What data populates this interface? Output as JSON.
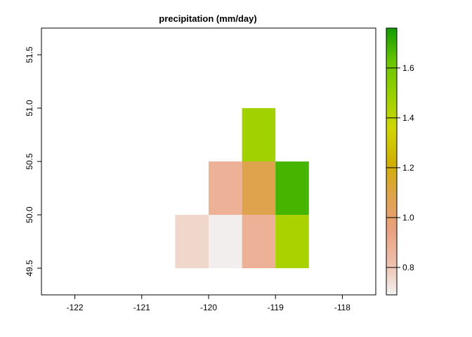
{
  "chart_data": {
    "type": "heatmap",
    "title": "precipitation (mm/day)",
    "xlabel": "",
    "ylabel": "",
    "xlim": [
      -122.5,
      -117.5
    ],
    "ylim": [
      49.25,
      51.75
    ],
    "x_ticks": [
      "-122",
      "-121",
      "-120",
      "-119",
      "-118"
    ],
    "y_ticks": [
      "49.5",
      "50.0",
      "50.5",
      "51.0",
      "51.5"
    ],
    "cell_width": 0.5,
    "cell_height": 0.5,
    "cells": [
      {
        "x": -120.25,
        "y": 49.75,
        "value": 0.76
      },
      {
        "x": -119.75,
        "y": 49.75,
        "value": 0.7
      },
      {
        "x": -119.25,
        "y": 49.75,
        "value": 0.88
      },
      {
        "x": -118.75,
        "y": 49.75,
        "value": 1.45
      },
      {
        "x": -119.75,
        "y": 50.25,
        "value": 0.88
      },
      {
        "x": -119.25,
        "y": 50.25,
        "value": 1.08
      },
      {
        "x": -118.75,
        "y": 50.25,
        "value": 1.68
      },
      {
        "x": -119.25,
        "y": 50.75,
        "value": 1.47
      }
    ],
    "colorbar": {
      "range": [
        0.69,
        1.76
      ],
      "ticks": [
        "0.8",
        "1.0",
        "1.2",
        "1.4",
        "1.6"
      ],
      "colors": [
        "#F2F2F2",
        "#EEBEAA",
        "#E9A07C",
        "#DEA34A",
        "#D0B000",
        "#D0D600",
        "#99D000",
        "#69C600",
        "#129C00"
      ]
    },
    "grid": false,
    "legend": "right"
  }
}
